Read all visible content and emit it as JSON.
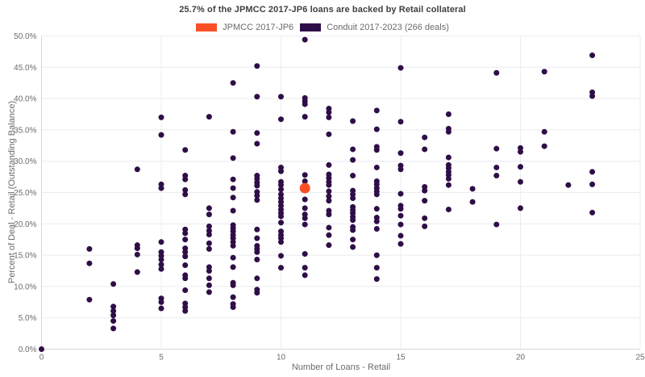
{
  "title": "25.7% of the JPMCC 2017-JP6 loans are backed by Retail collateral",
  "legend": {
    "series1": "JPMCC 2017-JP6",
    "series2": "Conduit 2017-2023 (266 deals)"
  },
  "axes": {
    "xlabel": "Number of Loans - Retail",
    "ylabel": "Percent of Deal - Retail (Outstanding Balance)"
  },
  "colors": {
    "jp6": "#fa4f26",
    "conduit": "#2f0e47",
    "grid": "#ececf1",
    "axis": "#d8d8d8",
    "tick_text": "#6b6b6b",
    "title_text": "#3f3f3f",
    "background": "#ffffff"
  },
  "chart_data": {
    "type": "scatter",
    "title": "25.7% of the JPMCC 2017-JP6 loans are backed by Retail collateral",
    "xlabel": "Number of Loans - Retail",
    "ylabel": "Percent of Deal - Retail (Outstanding Balance)",
    "xlim": [
      0,
      25
    ],
    "ylim": [
      0,
      50
    ],
    "grid": true,
    "legend_position": "top",
    "xticks": [
      0,
      5,
      10,
      15,
      20,
      25
    ],
    "xtick_labels": [
      "0",
      "5",
      "10",
      "15",
      "20",
      "25"
    ],
    "yticks": [
      0,
      5,
      10,
      15,
      20,
      25,
      30,
      35,
      40,
      45,
      50
    ],
    "ytick_labels": [
      "0.0%",
      "5.0%",
      "10.0%",
      "15.0%",
      "20.0%",
      "25.0%",
      "30.0%",
      "35.0%",
      "40.0%",
      "45.0%",
      "50.0%"
    ],
    "series": [
      {
        "name": "Conduit 2017-2023 (266 deals)",
        "color": "#2f0e47",
        "marker_diameter": 7,
        "points": [
          [
            0,
            0
          ],
          [
            2,
            16
          ],
          [
            2,
            13.7
          ],
          [
            2,
            7.9
          ],
          [
            3,
            10.4
          ],
          [
            3,
            6.8
          ],
          [
            3,
            6.1
          ],
          [
            3,
            5.4
          ],
          [
            3,
            4.5
          ],
          [
            3,
            3.3
          ],
          [
            4,
            28.7
          ],
          [
            4,
            16.6
          ],
          [
            4,
            16.1
          ],
          [
            4,
            15.1
          ],
          [
            4,
            12.3
          ],
          [
            5,
            37
          ],
          [
            5,
            34.2
          ],
          [
            5,
            26.3
          ],
          [
            5,
            25.7
          ],
          [
            5,
            17.1
          ],
          [
            5,
            15.5
          ],
          [
            5,
            14.9
          ],
          [
            5,
            14.3
          ],
          [
            5,
            13.5
          ],
          [
            5,
            12.8
          ],
          [
            5,
            8.1
          ],
          [
            5,
            7.5
          ],
          [
            5,
            6.5
          ],
          [
            6,
            31.8
          ],
          [
            6,
            27.7
          ],
          [
            6,
            27.1
          ],
          [
            6,
            25.4
          ],
          [
            6,
            24.7
          ],
          [
            6,
            19.1
          ],
          [
            6,
            18.5
          ],
          [
            6,
            17.5
          ],
          [
            6,
            16.1
          ],
          [
            6,
            15.5
          ],
          [
            6,
            14.8
          ],
          [
            6,
            13.4
          ],
          [
            6,
            11.8
          ],
          [
            6,
            11.3
          ],
          [
            6,
            9.4
          ],
          [
            6,
            7.3
          ],
          [
            6,
            6.7
          ],
          [
            6,
            6.1
          ],
          [
            7,
            37.1
          ],
          [
            7,
            22.5
          ],
          [
            7,
            21.5
          ],
          [
            7,
            19.6
          ],
          [
            7,
            18.9
          ],
          [
            7,
            18.3
          ],
          [
            7,
            16.9
          ],
          [
            7,
            16
          ],
          [
            7,
            13.1
          ],
          [
            7,
            12.5
          ],
          [
            7,
            11.3
          ],
          [
            7,
            10.2
          ],
          [
            7,
            9.1
          ],
          [
            8,
            42.5
          ],
          [
            8,
            34.7
          ],
          [
            8,
            30.5
          ],
          [
            8,
            27.1
          ],
          [
            8,
            25.7
          ],
          [
            8,
            24.2
          ],
          [
            8,
            22.1
          ],
          [
            8,
            19.8
          ],
          [
            8,
            19.3
          ],
          [
            8,
            18.8
          ],
          [
            8,
            18.2
          ],
          [
            8,
            17.7
          ],
          [
            8,
            17.1
          ],
          [
            8,
            16.5
          ],
          [
            8,
            14.6
          ],
          [
            8,
            13.1
          ],
          [
            8,
            10.6
          ],
          [
            8,
            10.2
          ],
          [
            8,
            8.3
          ],
          [
            8,
            7.2
          ],
          [
            8,
            6.7
          ],
          [
            9,
            45.2
          ],
          [
            9,
            40.3
          ],
          [
            9,
            34.5
          ],
          [
            9,
            32.8
          ],
          [
            9,
            27.7
          ],
          [
            9,
            27.2
          ],
          [
            9,
            26.6
          ],
          [
            9,
            26.1
          ],
          [
            9,
            25.1
          ],
          [
            9,
            24.5
          ],
          [
            9,
            23.8
          ],
          [
            9,
            19.1
          ],
          [
            9,
            17.7
          ],
          [
            9,
            16.5
          ],
          [
            9,
            16
          ],
          [
            9,
            15.5
          ],
          [
            9,
            14.3
          ],
          [
            9,
            11.3
          ],
          [
            9,
            9.5
          ],
          [
            9,
            9
          ],
          [
            10,
            40.3
          ],
          [
            10,
            36.7
          ],
          [
            10,
            29
          ],
          [
            10,
            28.4
          ],
          [
            10,
            26.7
          ],
          [
            10,
            26.2
          ],
          [
            10,
            25.5
          ],
          [
            10,
            24.7
          ],
          [
            10,
            24.1
          ],
          [
            10,
            23.5
          ],
          [
            10,
            22.9
          ],
          [
            10,
            22.3
          ],
          [
            10,
            21.7
          ],
          [
            10,
            21.2
          ],
          [
            10,
            20.2
          ],
          [
            10,
            18.8
          ],
          [
            10,
            18.2
          ],
          [
            10,
            17.7
          ],
          [
            10,
            17.1
          ],
          [
            10,
            14.9
          ],
          [
            10,
            13
          ],
          [
            11,
            49.4
          ],
          [
            11,
            40.1
          ],
          [
            11,
            39.6
          ],
          [
            11,
            39.1
          ],
          [
            11,
            37.1
          ],
          [
            11,
            27.8
          ],
          [
            11,
            26.8
          ],
          [
            11,
            23.9
          ],
          [
            11,
            22.5
          ],
          [
            11,
            21.5
          ],
          [
            11,
            20.9
          ],
          [
            11,
            19.9
          ],
          [
            11,
            15.2
          ],
          [
            11,
            13
          ],
          [
            11,
            11.8
          ],
          [
            12,
            38.4
          ],
          [
            12,
            37.8
          ],
          [
            12,
            37
          ],
          [
            12,
            34.3
          ],
          [
            12,
            29.4
          ],
          [
            12,
            27.9
          ],
          [
            12,
            27.3
          ],
          [
            12,
            26.7
          ],
          [
            12,
            26.2
          ],
          [
            12,
            25.2
          ],
          [
            12,
            24.4
          ],
          [
            12,
            23.7
          ],
          [
            12,
            22.1
          ],
          [
            12,
            21.5
          ],
          [
            12,
            19.4
          ],
          [
            12,
            18.2
          ],
          [
            12,
            16.6
          ],
          [
            13,
            36.4
          ],
          [
            13,
            31.9
          ],
          [
            13,
            30.2
          ],
          [
            13,
            27.7
          ],
          [
            13,
            25.3
          ],
          [
            13,
            24.7
          ],
          [
            13,
            24.1
          ],
          [
            13,
            22.7
          ],
          [
            13,
            22.2
          ],
          [
            13,
            21.7
          ],
          [
            13,
            21.1
          ],
          [
            13,
            20.6
          ],
          [
            13,
            19.5
          ],
          [
            13,
            19
          ],
          [
            13,
            17.5
          ],
          [
            13,
            16.3
          ],
          [
            14,
            38.1
          ],
          [
            14,
            35.1
          ],
          [
            14,
            32.3
          ],
          [
            14,
            31.8
          ],
          [
            14,
            29
          ],
          [
            14,
            26.8
          ],
          [
            14,
            26.3
          ],
          [
            14,
            25.7
          ],
          [
            14,
            25.2
          ],
          [
            14,
            24.7
          ],
          [
            14,
            22.4
          ],
          [
            14,
            21
          ],
          [
            14,
            20.4
          ],
          [
            14,
            19.2
          ],
          [
            14,
            15
          ],
          [
            14,
            13
          ],
          [
            14,
            11.2
          ],
          [
            15,
            44.9
          ],
          [
            15,
            36.3
          ],
          [
            15,
            31.3
          ],
          [
            15,
            29.3
          ],
          [
            15,
            28.7
          ],
          [
            15,
            24.8
          ],
          [
            15,
            22.9
          ],
          [
            15,
            22.4
          ],
          [
            15,
            21.3
          ],
          [
            15,
            19.9
          ],
          [
            15,
            18.1
          ],
          [
            15,
            16.8
          ],
          [
            16,
            33.8
          ],
          [
            16,
            31.9
          ],
          [
            16,
            25.9
          ],
          [
            16,
            25.3
          ],
          [
            16,
            23.7
          ],
          [
            16,
            20.9
          ],
          [
            16,
            19.6
          ],
          [
            17,
            37.5
          ],
          [
            17,
            35.2
          ],
          [
            17,
            34.7
          ],
          [
            17,
            30.6
          ],
          [
            17,
            29.4
          ],
          [
            17,
            28.9
          ],
          [
            17,
            28.3
          ],
          [
            17,
            27.8
          ],
          [
            17,
            27.2
          ],
          [
            17,
            26.2
          ],
          [
            17,
            22.3
          ],
          [
            18,
            25.6
          ],
          [
            18,
            23.5
          ],
          [
            19,
            44.1
          ],
          [
            19,
            32
          ],
          [
            19,
            29
          ],
          [
            19,
            27.7
          ],
          [
            19,
            19.9
          ],
          [
            20,
            32.1
          ],
          [
            20,
            31.5
          ],
          [
            20,
            29.1
          ],
          [
            20,
            26.7
          ],
          [
            20,
            22.5
          ],
          [
            21,
            44.3
          ],
          [
            21,
            34.7
          ],
          [
            21,
            32.4
          ],
          [
            22,
            26.2
          ],
          [
            23,
            46.9
          ],
          [
            23,
            41
          ],
          [
            23,
            40.4
          ],
          [
            23,
            28.3
          ],
          [
            23,
            26.3
          ],
          [
            23,
            21.8
          ]
        ]
      },
      {
        "name": "JPMCC 2017-JP6",
        "color": "#fa4f26",
        "marker_diameter": 13,
        "points": [
          [
            11,
            25.7
          ]
        ]
      }
    ]
  }
}
